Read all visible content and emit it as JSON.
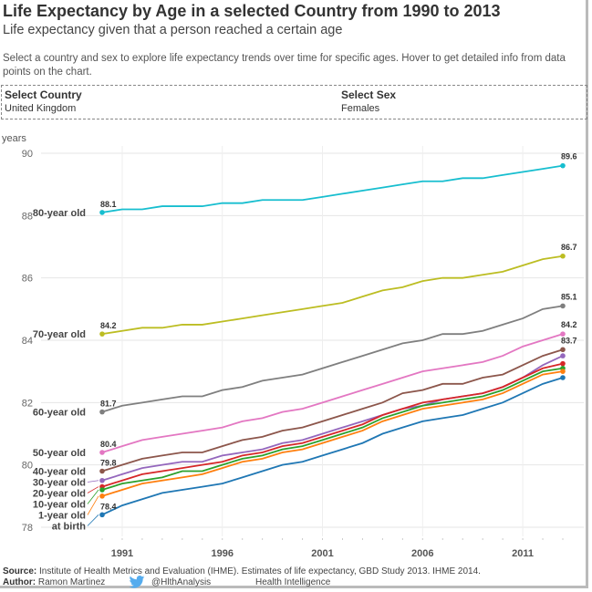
{
  "header": {
    "title": "Life Expectancy by Age in a selected Country from 1990 to 2013",
    "subtitle": "Life expectancy given that a person reached a certain age",
    "description": "Select a country and sex to explore life expectancy trends over time for specific ages. Hover to get detailed info from data points on the chart."
  },
  "filters": {
    "country_label": "Select Country",
    "country_value": "United Kingdom",
    "sex_label": "Select Sex",
    "sex_value": "Females"
  },
  "footer": {
    "source_label": "Source:",
    "source_text": "Institute of Health Metrics and Evaluation (IHME). Estimates of life expectancy, GBD Study 2013. IHME 2014.",
    "author_label": "Author:",
    "author_text": "Ramon Martinez",
    "twitter_icon": "twitter-bird-icon",
    "twitter_handle": "@HlthAnalysis",
    "org": "Health Intelligence",
    "twitter_color": "#55acee"
  },
  "chart_data": {
    "type": "line",
    "title": "",
    "xlabel": "",
    "ylabel": "years",
    "xlim": [
      1990,
      2013
    ],
    "ylim": [
      78,
      90
    ],
    "yticks": [
      78,
      80,
      82,
      84,
      86,
      88,
      90
    ],
    "xticks": [
      1991,
      1996,
      2001,
      2006,
      2011
    ],
    "grid": true,
    "x": [
      1990,
      1991,
      1992,
      1993,
      1994,
      1995,
      1996,
      1997,
      1998,
      1999,
      2000,
      2001,
      2002,
      2003,
      2004,
      2005,
      2006,
      2007,
      2008,
      2009,
      2010,
      2011,
      2012,
      2013
    ],
    "series": [
      {
        "name": "80-year old",
        "color": "#17becf",
        "start_label": "88.1",
        "end_label": "89.6",
        "values": [
          88.1,
          88.2,
          88.2,
          88.3,
          88.3,
          88.3,
          88.4,
          88.4,
          88.5,
          88.5,
          88.5,
          88.6,
          88.7,
          88.8,
          88.9,
          89.0,
          89.1,
          89.1,
          89.2,
          89.2,
          89.3,
          89.4,
          89.5,
          89.6
        ]
      },
      {
        "name": "70-year old",
        "color": "#bcbd22",
        "start_label": "84.2",
        "end_label": "86.7",
        "values": [
          84.2,
          84.3,
          84.4,
          84.4,
          84.5,
          84.5,
          84.6,
          84.7,
          84.8,
          84.9,
          85.0,
          85.1,
          85.2,
          85.4,
          85.6,
          85.7,
          85.9,
          86.0,
          86.0,
          86.1,
          86.2,
          86.4,
          86.6,
          86.7
        ]
      },
      {
        "name": "60-year old",
        "color": "#7f7f7f",
        "start_label": "81.7",
        "end_label": "85.1",
        "values": [
          81.7,
          81.9,
          82.0,
          82.1,
          82.2,
          82.2,
          82.4,
          82.5,
          82.7,
          82.8,
          82.9,
          83.1,
          83.3,
          83.5,
          83.7,
          83.9,
          84.0,
          84.2,
          84.2,
          84.3,
          84.5,
          84.7,
          85.0,
          85.1
        ]
      },
      {
        "name": "50-year old",
        "color": "#e377c2",
        "start_label": "80.4",
        "end_label": "84.2",
        "values": [
          80.4,
          80.6,
          80.8,
          80.9,
          81.0,
          81.1,
          81.2,
          81.4,
          81.5,
          81.7,
          81.8,
          82.0,
          82.2,
          82.4,
          82.6,
          82.8,
          83.0,
          83.1,
          83.2,
          83.3,
          83.5,
          83.8,
          84.0,
          84.2
        ]
      },
      {
        "name": "40-year old",
        "color": "#8c564b",
        "start_label": "79.8",
        "end_label": "83.7",
        "values": [
          79.8,
          80.0,
          80.2,
          80.3,
          80.4,
          80.4,
          80.6,
          80.8,
          80.9,
          81.1,
          81.2,
          81.4,
          81.6,
          81.8,
          82.0,
          82.3,
          82.4,
          82.6,
          82.6,
          82.8,
          82.9,
          83.2,
          83.5,
          83.7
        ]
      },
      {
        "name": "30-year old",
        "color": "#9467bd",
        "start_label": "",
        "end_label": "",
        "values": [
          79.5,
          79.7,
          79.9,
          80.0,
          80.1,
          80.1,
          80.3,
          80.4,
          80.5,
          80.7,
          80.8,
          81.0,
          81.2,
          81.4,
          81.6,
          81.8,
          81.9,
          82.1,
          82.2,
          82.3,
          82.5,
          82.8,
          83.2,
          83.5
        ]
      },
      {
        "name": "20-year old",
        "color": "#d62728",
        "start_label": "",
        "end_label": "",
        "values": [
          79.3,
          79.5,
          79.7,
          79.8,
          79.9,
          80.0,
          80.1,
          80.3,
          80.4,
          80.6,
          80.7,
          80.9,
          81.1,
          81.3,
          81.6,
          81.8,
          82.0,
          82.1,
          82.2,
          82.3,
          82.5,
          82.8,
          83.1,
          83.25
        ]
      },
      {
        "name": "10-year old",
        "color": "#2ca02c",
        "start_label": "",
        "end_label": "",
        "values": [
          79.2,
          79.4,
          79.5,
          79.6,
          79.8,
          79.8,
          80.0,
          80.2,
          80.3,
          80.5,
          80.6,
          80.8,
          81.0,
          81.2,
          81.5,
          81.7,
          81.9,
          82.0,
          82.1,
          82.2,
          82.4,
          82.7,
          83.0,
          83.1
        ]
      },
      {
        "name": "1-year old",
        "color": "#ff7f0e",
        "start_label": "",
        "end_label": "",
        "values": [
          79.0,
          79.2,
          79.4,
          79.5,
          79.6,
          79.7,
          79.9,
          80.1,
          80.2,
          80.4,
          80.5,
          80.7,
          80.9,
          81.1,
          81.4,
          81.6,
          81.8,
          81.9,
          82.0,
          82.1,
          82.3,
          82.6,
          82.9,
          83.0
        ]
      },
      {
        "name": "at birth",
        "color": "#1f77b4",
        "start_label": "78.4",
        "end_label": "",
        "values": [
          78.4,
          78.7,
          78.9,
          79.1,
          79.2,
          79.3,
          79.4,
          79.6,
          79.8,
          80.0,
          80.1,
          80.3,
          80.5,
          80.7,
          81.0,
          81.2,
          81.4,
          81.5,
          81.6,
          81.8,
          82.0,
          82.3,
          82.6,
          82.8
        ]
      }
    ]
  }
}
